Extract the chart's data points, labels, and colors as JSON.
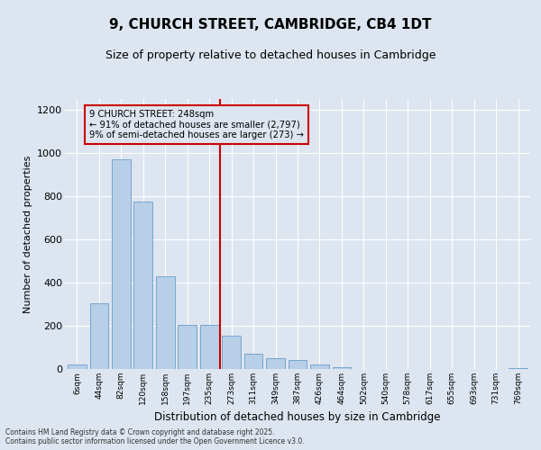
{
  "title": "9, CHURCH STREET, CAMBRIDGE, CB4 1DT",
  "subtitle": "Size of property relative to detached houses in Cambridge",
  "xlabel": "Distribution of detached houses by size in Cambridge",
  "ylabel": "Number of detached properties",
  "categories": [
    "6sqm",
    "44sqm",
    "82sqm",
    "120sqm",
    "158sqm",
    "197sqm",
    "235sqm",
    "273sqm",
    "311sqm",
    "349sqm",
    "387sqm",
    "426sqm",
    "464sqm",
    "502sqm",
    "540sqm",
    "578sqm",
    "617sqm",
    "655sqm",
    "693sqm",
    "731sqm",
    "769sqm"
  ],
  "values": [
    20,
    305,
    970,
    775,
    430,
    205,
    205,
    155,
    70,
    50,
    40,
    20,
    10,
    0,
    0,
    0,
    0,
    0,
    0,
    0,
    5
  ],
  "bar_color": "#b8cfe8",
  "bar_edge_color": "#6a9dc8",
  "vline_color": "#cc0000",
  "annotation_box_color": "#cc0000",
  "ylim": [
    0,
    1250
  ],
  "yticks": [
    0,
    200,
    400,
    600,
    800,
    1000,
    1200
  ],
  "background_color": "#dde5f0",
  "grid_color": "#ffffff",
  "marker_label": "9 CHURCH STREET: 248sqm",
  "annotation_line1": "← 91% of detached houses are smaller (2,797)",
  "annotation_line2": "9% of semi-detached houses are larger (273) →",
  "footer_line1": "Contains HM Land Registry data © Crown copyright and database right 2025.",
  "footer_line2": "Contains public sector information licensed under the Open Government Licence v3.0."
}
